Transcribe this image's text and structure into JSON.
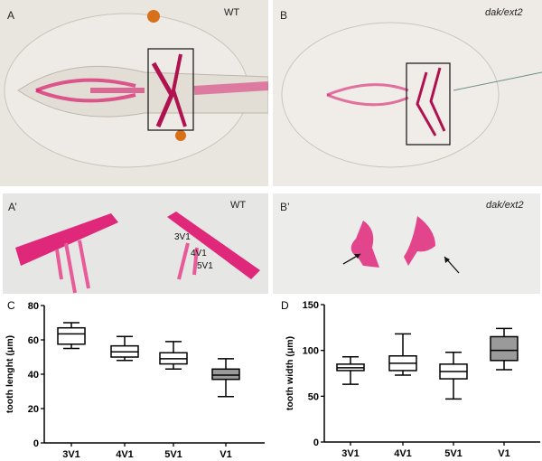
{
  "panels": {
    "A": {
      "label": "A",
      "genotype": "WT"
    },
    "B": {
      "label": "B",
      "genotype": "dak/ext2"
    },
    "A_prime": {
      "label": "A’",
      "genotype": "WT",
      "tooth_labels": [
        "3V1",
        "4V1",
        "5V1"
      ]
    },
    "B_prime": {
      "label": "B’",
      "genotype": "dak/ext2"
    }
  },
  "colors": {
    "stain": "#d81b6a",
    "box_fill_mutant": "#9a9a9a",
    "box_fill_wt": "#ffffff"
  },
  "chart_data": [
    {
      "panel": "C",
      "type": "box",
      "ylabel": "tooth lenght (μm)",
      "xlabel": "",
      "ylim": [
        0,
        80
      ],
      "yticks": [
        0,
        20,
        40,
        60,
        80
      ],
      "categories": [
        "3V1",
        "4V1",
        "5V1",
        "V1"
      ],
      "filled": [
        false,
        false,
        false,
        true
      ],
      "boxes": [
        {
          "min": 55,
          "q1": 57.5,
          "median": 63.5,
          "q3": 67,
          "max": 70
        },
        {
          "min": 48,
          "q1": 50,
          "median": 53,
          "q3": 56.5,
          "max": 62
        },
        {
          "min": 43,
          "q1": 46,
          "median": 49,
          "q3": 52.5,
          "max": 59
        },
        {
          "min": 27,
          "q1": 37,
          "median": 39.5,
          "q3": 43,
          "max": 49
        }
      ]
    },
    {
      "panel": "D",
      "type": "box",
      "ylabel": "tooth width (μm)",
      "xlabel": "",
      "ylim": [
        0,
        150
      ],
      "yticks": [
        0,
        50,
        100,
        150
      ],
      "categories": [
        "3V1",
        "4V1",
        "5V1",
        "V1"
      ],
      "filled": [
        false,
        false,
        false,
        true
      ],
      "boxes": [
        {
          "min": 63,
          "q1": 78,
          "median": 81,
          "q3": 85,
          "max": 93
        },
        {
          "min": 73,
          "q1": 78,
          "median": 86,
          "q3": 94,
          "max": 118
        },
        {
          "min": 47,
          "q1": 69,
          "median": 77,
          "q3": 85,
          "max": 98
        },
        {
          "min": 79,
          "q1": 89,
          "median": 100,
          "q3": 115,
          "max": 124
        }
      ]
    }
  ]
}
